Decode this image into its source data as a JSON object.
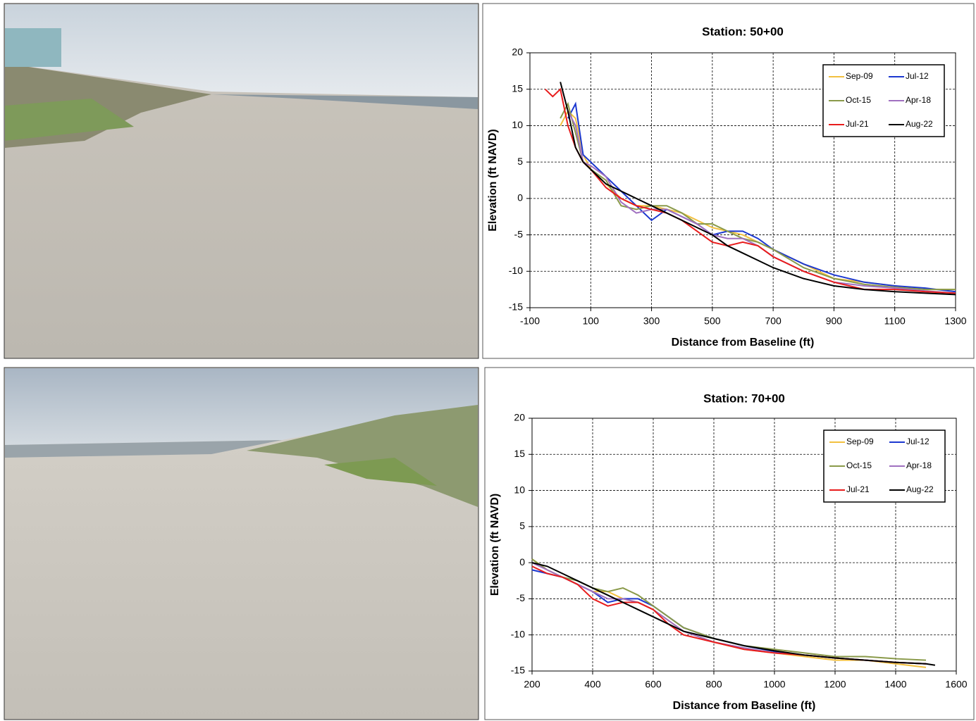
{
  "chart_data": [
    {
      "type": "line",
      "title": "Station: 50+00",
      "x_label": "Distance from Baseline (ft)",
      "y_label": "Elevation (ft NAVD)",
      "x": [
        -50,
        -25,
        0,
        25,
        50,
        75,
        100,
        150,
        200,
        250,
        300,
        350,
        400,
        450,
        500,
        550,
        600,
        650,
        700,
        800,
        900,
        1000,
        1100,
        1200,
        1300
      ],
      "series": [
        {
          "name": "Sep-09",
          "color": "#f2c040",
          "values": [
            null,
            null,
            10,
            12,
            11,
            6,
            4,
            2,
            0,
            -1,
            -1,
            -1.5,
            -2,
            -3,
            -4,
            -4.5,
            -5,
            -6,
            -7,
            -9,
            -11,
            -11.5,
            -12,
            -12.5,
            -12.5
          ]
        },
        {
          "name": "Jul-12",
          "color": "#1c38d0",
          "values": [
            null,
            null,
            null,
            11,
            13,
            6,
            5,
            3,
            1,
            -1,
            -3,
            -1.5,
            -2.5,
            -3.5,
            -5,
            -4.5,
            -4.5,
            -5.5,
            -7,
            -9,
            -10.5,
            -11.5,
            -12,
            -12.3,
            -12.8
          ]
        },
        {
          "name": "Oct-15",
          "color": "#8a9a4a",
          "values": [
            null,
            null,
            11,
            13,
            9,
            5,
            4,
            2.5,
            -1,
            -1.5,
            -1,
            -1,
            -2,
            -3.5,
            -3.5,
            -4.5,
            -5.5,
            -6,
            -7,
            -9.5,
            -11,
            -11.8,
            -12.2,
            -12.5,
            -12.5
          ]
        },
        {
          "name": "Apr-18",
          "color": "#a070c0",
          "values": [
            null,
            null,
            null,
            12,
            10,
            5,
            4.5,
            3,
            -0.5,
            -2,
            -1.5,
            -1.5,
            -2.5,
            -3.5,
            -5,
            -5.5,
            -5.5,
            -6.5,
            -8,
            -10,
            -11.5,
            -12,
            -12.3,
            -12.7,
            -13
          ]
        },
        {
          "name": "Jul-21",
          "color": "#e81c1c",
          "values": [
            15,
            14,
            15,
            10,
            7,
            5,
            4,
            1.5,
            0,
            -1,
            -1.5,
            -2,
            -3,
            -4.5,
            -6,
            -6.5,
            -6,
            -6.5,
            -8,
            -10,
            -11.5,
            -12.5,
            -12.5,
            -12.8,
            -13
          ]
        },
        {
          "name": "Aug-22",
          "color": "#000000",
          "values": [
            null,
            null,
            16,
            12,
            7,
            5,
            4,
            2,
            1,
            0,
            -1,
            -2,
            -3,
            -4,
            -5,
            -6.5,
            -7.5,
            -8.5,
            -9.5,
            -11,
            -12,
            -12.5,
            -12.8,
            -13,
            -13.2
          ]
        }
      ],
      "xlim": [
        -100,
        1300
      ],
      "xticks": [
        -100,
        100,
        300,
        500,
        700,
        900,
        1100,
        1300
      ],
      "ylim": [
        -15,
        20
      ],
      "yticks": [
        -15,
        -10,
        -5,
        0,
        5,
        10,
        15,
        20
      ],
      "grid": true,
      "legend": "top-right"
    },
    {
      "type": "line",
      "title": "Station: 70+00",
      "x_label": "Distance from Baseline (ft)",
      "y_label": "Elevation (ft NAVD)",
      "x": [
        200,
        250,
        300,
        350,
        400,
        450,
        500,
        550,
        600,
        650,
        700,
        800,
        900,
        1000,
        1100,
        1200,
        1300,
        1400,
        1500,
        1530
      ],
      "series": [
        {
          "name": "Sep-09",
          "color": "#f2c040",
          "values": [
            0.5,
            -1,
            -2,
            -3,
            -4,
            -4,
            -5,
            -5.5,
            -6.5,
            -8,
            -9.5,
            -11,
            -12,
            -12.5,
            -13,
            -13.5,
            -13.5,
            -14,
            -14.5,
            null
          ]
        },
        {
          "name": "Jul-12",
          "color": "#1c38d0",
          "values": [
            -1,
            -1.5,
            -2,
            -3,
            -4,
            -5.5,
            -5,
            -5,
            -6,
            -7.5,
            -9,
            -10.5,
            -11.5,
            -12.3,
            -12.8,
            -13.2,
            -13.5,
            -13.8,
            -14,
            null
          ]
        },
        {
          "name": "Oct-15",
          "color": "#8a9a4a",
          "values": [
            0.5,
            -1,
            -2,
            -2.5,
            -3.5,
            -4,
            -3.5,
            -4.5,
            -6,
            -7.5,
            -9,
            -10.5,
            -11.5,
            -12,
            -12.5,
            -13,
            -13,
            -13.3,
            -13.5,
            null
          ]
        },
        {
          "name": "Apr-18",
          "color": "#a070c0",
          "values": [
            0,
            -1,
            -2,
            -3,
            -4,
            -5,
            -5,
            -5.5,
            -6.5,
            -8,
            -9.5,
            -11,
            -11.8,
            -12.5,
            -12.8,
            -13.2,
            -13.5,
            -13.8,
            -14,
            null
          ]
        },
        {
          "name": "Jul-21",
          "color": "#e81c1c",
          "values": [
            -0.5,
            -1.5,
            -2,
            -3,
            -5,
            -6,
            -5.5,
            -5.5,
            -6.5,
            -8.5,
            -10,
            -11,
            -12,
            -12.5,
            -12.8,
            -13.2,
            -13.5,
            -13.8,
            -14,
            null
          ]
        },
        {
          "name": "Aug-22",
          "color": "#000000",
          "values": [
            0,
            -0.5,
            -1.5,
            -2.5,
            -3.5,
            -4.5,
            -5.5,
            -6.5,
            -7.5,
            -8.5,
            -9.5,
            -10.5,
            -11.5,
            -12.2,
            -12.8,
            -13.2,
            -13.5,
            -13.8,
            -14,
            -14.2
          ]
        }
      ],
      "xlim": [
        200,
        1600
      ],
      "xticks": [
        200,
        400,
        600,
        800,
        1000,
        1200,
        1400,
        1600
      ],
      "ylim": [
        -15,
        20
      ],
      "yticks": [
        -15,
        -10,
        -5,
        0,
        5,
        10,
        15,
        20
      ],
      "grid": true,
      "legend": "top-right"
    }
  ]
}
